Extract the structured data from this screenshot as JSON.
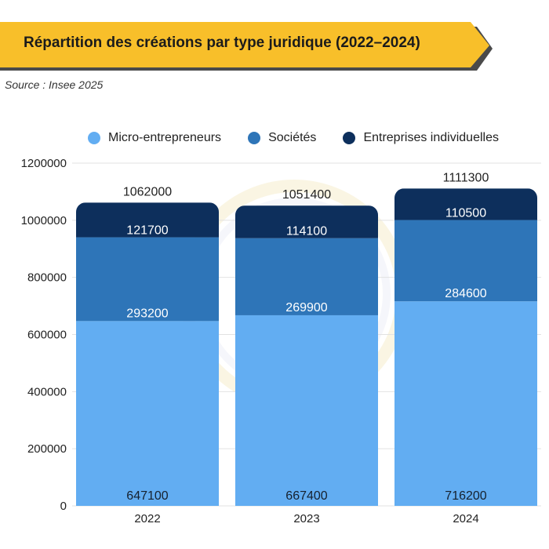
{
  "header": {
    "title": "Répartition des créations par type juridique (2022–2024)",
    "source": "Source : Insee 2025"
  },
  "colors": {
    "banner": "#F8BF2A",
    "banner_shadow": "#4A4A4A",
    "micro": "#62ADF2",
    "societes": "#2E75B8",
    "individuelles": "#0D2F5C",
    "grid": "#E2E2E2"
  },
  "chart_data": {
    "type": "bar",
    "stacked": true,
    "categories": [
      "2022",
      "2023",
      "2024"
    ],
    "series": [
      {
        "name": "Micro-entrepreneurs",
        "values": [
          647100,
          667400,
          716200
        ]
      },
      {
        "name": "Sociétés",
        "values": [
          293200,
          269900,
          284600
        ]
      },
      {
        "name": "Entreprises individuelles",
        "values": [
          121700,
          114100,
          110500
        ]
      }
    ],
    "totals": [
      1062000,
      1051400,
      1111300
    ],
    "ylim": [
      0,
      1200000
    ],
    "yticks": [
      0,
      200000,
      400000,
      600000,
      800000,
      1000000,
      1200000
    ],
    "legend_position": "top",
    "grid": true
  }
}
